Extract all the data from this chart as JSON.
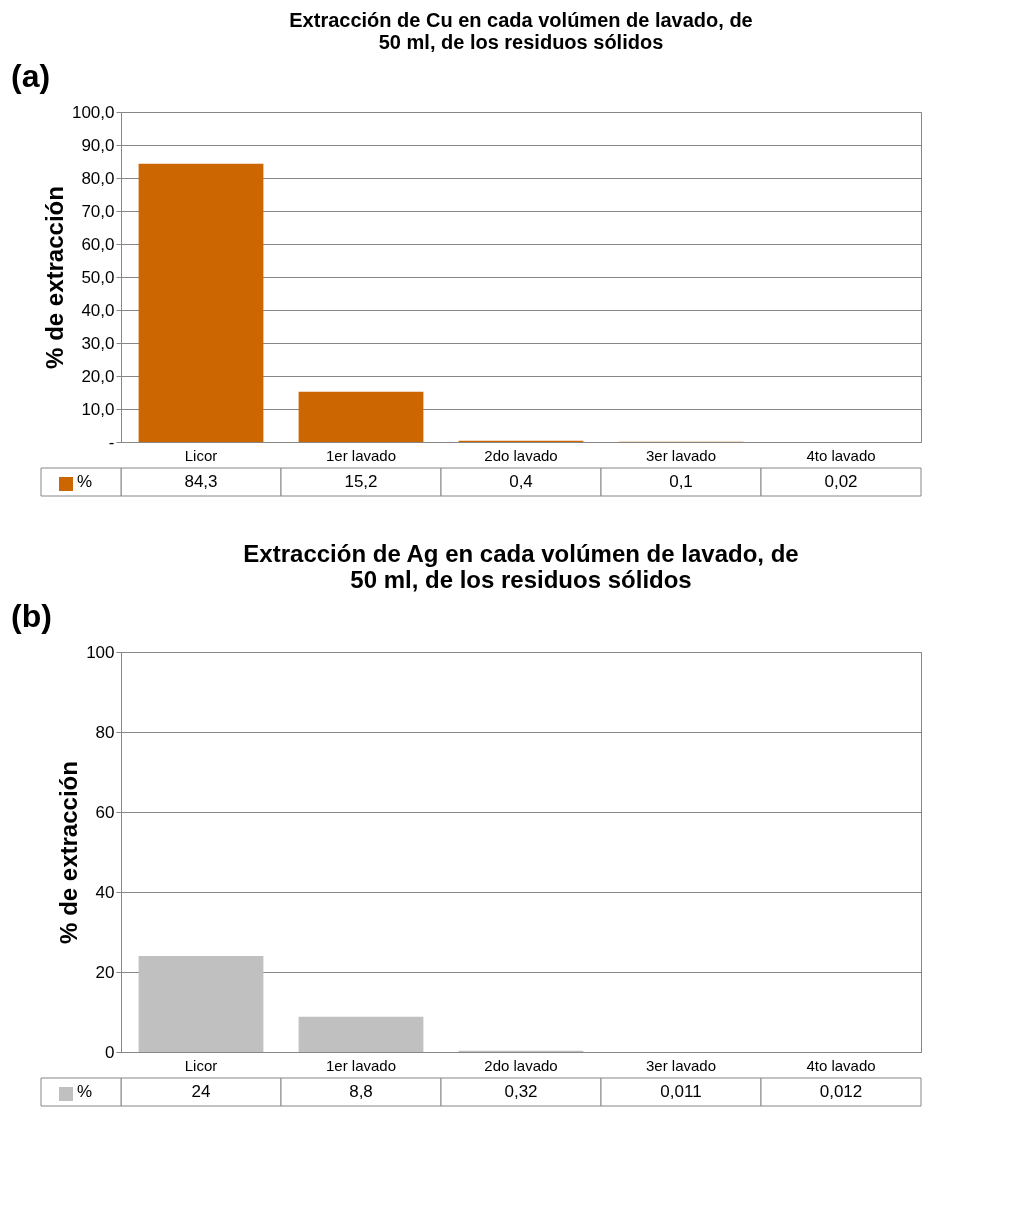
{
  "chart_data": [
    {
      "type": "bar",
      "title": "Extracción de Cu en cada volúmen de lavado, de 50 ml, de los residuos sólidos",
      "ylabel": "% de extracción",
      "annotations": [
        "(a)"
      ],
      "categories": [
        "Licor",
        "1er lavado",
        "2do lavado",
        "3er lavado",
        "4to lavado"
      ],
      "series": [
        {
          "name": "%",
          "color": "#cc6600",
          "values": [
            84.3,
            15.2,
            0.4,
            0.1,
            0.02
          ],
          "value_labels": [
            "84,3",
            "15,2",
            "0,4",
            "0,1",
            "0,02"
          ]
        }
      ],
      "ylim": [
        0,
        100
      ],
      "yticks": [
        {
          "value": 0,
          "label": "-"
        },
        {
          "value": 10,
          "label": "10,0"
        },
        {
          "value": 20,
          "label": "20,0"
        },
        {
          "value": 30,
          "label": "30,0"
        },
        {
          "value": 40,
          "label": "40,0"
        },
        {
          "value": 50,
          "label": "50,0"
        },
        {
          "value": 60,
          "label": "60,0"
        },
        {
          "value": 70,
          "label": "70,0"
        },
        {
          "value": 80,
          "label": "80,0"
        },
        {
          "value": 90,
          "label": "90,0"
        },
        {
          "value": 100,
          "label": "100,0"
        }
      ],
      "grid": "y",
      "legend": "bottom left"
    },
    {
      "type": "bar",
      "title": "Extracción de Ag en cada volúmen de lavado, de 50 ml, de los residuos sólidos",
      "ylabel": "% de extracción",
      "annotations": [
        "(b)"
      ],
      "categories": [
        "Licor",
        "1er lavado",
        "2do lavado",
        "3er lavado",
        "4to lavado"
      ],
      "series": [
        {
          "name": "%",
          "color": "#c0c0c0",
          "values": [
            24,
            8.8,
            0.32,
            0.011,
            0.012
          ],
          "value_labels": [
            "24",
            "8,8",
            "0,32",
            "0,011",
            "0,012"
          ]
        }
      ],
      "ylim": [
        0,
        100
      ],
      "yticks": [
        0,
        20,
        40,
        60,
        80,
        100
      ],
      "grid": "y",
      "legend": "bottom left"
    }
  ]
}
